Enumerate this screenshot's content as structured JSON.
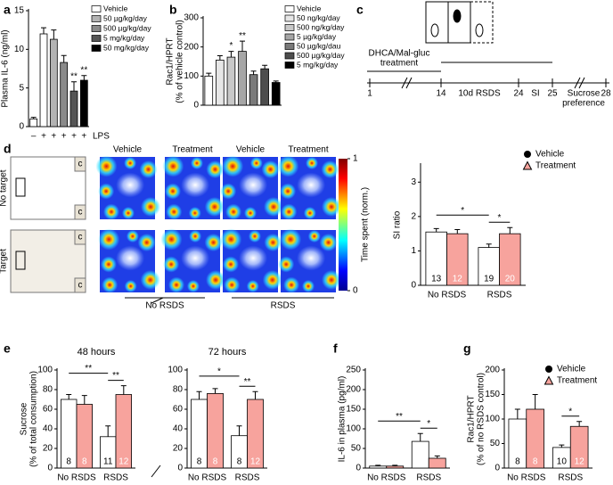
{
  "chart_data": [
    {
      "panel": "a",
      "type": "bar",
      "grouped": false,
      "ylabel": [
        "Plasma IL-6 (ng/ml)"
      ],
      "xlabel": "LPS",
      "categories": [
        "–",
        "+",
        "+",
        "+",
        "+",
        "+"
      ],
      "ylim": [
        0,
        15
      ],
      "yticks": [
        0,
        5,
        10,
        15
      ],
      "legend": "upper right",
      "legend_marker": "box",
      "series": [
        {
          "name": "Vehicle",
          "color": "#ffffff",
          "values": [
            1,
            12,
            null,
            null,
            null,
            null
          ],
          "errors": [
            0.2,
            0.8,
            null,
            null,
            null,
            null
          ]
        },
        {
          "name": "50 µg/kg/day",
          "color": "#b3b3b3",
          "values": [
            null,
            null,
            11.3,
            null,
            null,
            null
          ],
          "errors": [
            null,
            null,
            1.2,
            null,
            null,
            null
          ]
        },
        {
          "name": "500 µg/kg/day",
          "color": "#8a8a8a",
          "values": [
            null,
            null,
            null,
            8.3,
            null,
            null
          ],
          "errors": [
            null,
            null,
            null,
            0.9,
            null,
            null
          ]
        },
        {
          "name": "5 mg/kg/day",
          "color": "#555555",
          "values": [
            null,
            null,
            null,
            null,
            4.6,
            null
          ],
          "errors": [
            null,
            null,
            null,
            null,
            1.2,
            null
          ],
          "annotations": [
            null,
            null,
            null,
            null,
            "**",
            null
          ]
        },
        {
          "name": "50 mg/kg/day",
          "color": "#000000",
          "values": [
            null,
            null,
            null,
            null,
            null,
            6
          ],
          "errors": [
            null,
            null,
            null,
            null,
            null,
            0.6
          ],
          "annotations": [
            null,
            null,
            null,
            null,
            null,
            "**"
          ]
        }
      ]
    },
    {
      "panel": "b",
      "type": "bar",
      "grouped": false,
      "ylabel": [
        "Rac1/HPRT",
        "(% of vehicle control)"
      ],
      "categories": [
        null,
        null,
        null,
        null,
        null,
        null,
        null
      ],
      "ylim": [
        0,
        300
      ],
      "yticks": [
        0,
        100,
        200,
        300
      ],
      "legend": "upper right",
      "legend_marker": "box",
      "series": [
        {
          "name": "Vehicle",
          "color": "#ffffff",
          "values": [
            100,
            null,
            null,
            null,
            null,
            null,
            null
          ],
          "errors": [
            10,
            null,
            null,
            null,
            null,
            null,
            null
          ]
        },
        {
          "name": "50 ng/kg/day",
          "color": "#e6e6e6",
          "values": [
            null,
            155,
            null,
            null,
            null,
            null,
            null
          ],
          "errors": [
            null,
            15,
            null,
            null,
            null,
            null,
            null
          ]
        },
        {
          "name": "500 ng/kg/day",
          "color": "#c8c8c8",
          "values": [
            null,
            null,
            165,
            null,
            null,
            null,
            null
          ],
          "errors": [
            null,
            null,
            20,
            null,
            null,
            null,
            null
          ],
          "annotations": [
            null,
            null,
            "*",
            null,
            null,
            null,
            null
          ]
        },
        {
          "name": "5 µg/kg/day",
          "color": "#a6a6a6",
          "values": [
            null,
            null,
            null,
            185,
            null,
            null,
            null
          ],
          "errors": [
            null,
            null,
            null,
            35,
            null,
            null,
            null
          ],
          "annotations": [
            null,
            null,
            null,
            "**",
            null,
            null,
            null
          ]
        },
        {
          "name": "50 µg/kg/dau",
          "color": "#7a7a7a",
          "values": [
            null,
            null,
            null,
            null,
            105,
            null,
            null
          ],
          "errors": [
            null,
            null,
            null,
            null,
            12,
            null,
            null
          ]
        },
        {
          "name": "500 µg/kg/day",
          "color": "#4d4d4d",
          "values": [
            null,
            null,
            null,
            null,
            null,
            125,
            null
          ],
          "errors": [
            null,
            null,
            null,
            null,
            null,
            12,
            null
          ]
        },
        {
          "name": "5 mg/kg/day",
          "color": "#000000",
          "values": [
            null,
            null,
            null,
            null,
            null,
            null,
            78
          ],
          "errors": [
            null,
            null,
            null,
            null,
            null,
            null,
            5
          ]
        }
      ]
    },
    {
      "type": "bar",
      "grouped": true,
      "ylabel": [
        "SI ratio"
      ],
      "categories": [
        "No RSDS",
        "RSDS"
      ],
      "ylim": [
        0,
        3.5
      ],
      "yticks": [
        0,
        1,
        2,
        3
      ],
      "legend": "upper right",
      "legend_marker": "symbol",
      "series": [
        {
          "name": "Vehicle",
          "color": "#ffffff",
          "marker": "circle",
          "marker_color": "#000000",
          "values": [
            1.55,
            1.1
          ],
          "errors": [
            0.1,
            0.1
          ],
          "n_labels": [
            "13",
            "19"
          ],
          "annotations": [
            null,
            "*"
          ]
        },
        {
          "name": "Treatment",
          "color": "#f7a39d",
          "marker": "triangle",
          "marker_color": "#f7a39d",
          "values": [
            1.5,
            1.5
          ],
          "errors": [
            0.12,
            0.18
          ],
          "n_labels": [
            "12",
            "20"
          ],
          "annotations": [
            null,
            "*"
          ]
        }
      ]
    },
    {
      "panel": "e",
      "type": "bar",
      "grouped": true,
      "title": "48 hours",
      "ylabel": [
        "Sucrose",
        "(% of total consumption)"
      ],
      "categories": [
        "No RSDS",
        "RSDS"
      ],
      "ylim": [
        0,
        100
      ],
      "yticks": [
        0,
        20,
        40,
        60,
        80,
        100
      ],
      "series": [
        {
          "name": "Vehicle",
          "color": "#ffffff",
          "values": [
            70,
            32
          ],
          "errors": [
            5,
            11
          ],
          "n_labels": [
            "8",
            "11"
          ],
          "annotations": [
            null,
            "**"
          ]
        },
        {
          "name": "Treatment",
          "color": "#f7a39d",
          "values": [
            65,
            75
          ],
          "errors": [
            9,
            9
          ],
          "n_labels": [
            "8",
            "12"
          ],
          "annotations": [
            null,
            "**"
          ]
        }
      ]
    },
    {
      "type": "bar",
      "grouped": true,
      "title": "72 hours",
      "categories": [
        "No RSDS",
        "RSDS"
      ],
      "ylim": [
        0,
        100
      ],
      "yticks": [
        0,
        20,
        40,
        60,
        80,
        100
      ],
      "series": [
        {
          "name": "Vehicle",
          "color": "#ffffff",
          "values": [
            70,
            33
          ],
          "errors": [
            8,
            10
          ],
          "n_labels": [
            "8",
            "8"
          ],
          "annotations": [
            null,
            "*"
          ]
        },
        {
          "name": "Treatment",
          "color": "#f7a39d",
          "values": [
            76,
            70
          ],
          "errors": [
            5,
            8
          ],
          "n_labels": [
            "8",
            "12"
          ],
          "annotations": [
            null,
            "**"
          ]
        }
      ]
    },
    {
      "panel": "f",
      "type": "bar",
      "grouped": true,
      "ylabel": [
        "IL-6 in plasma (pg/ml)"
      ],
      "categories": [
        "No RSDS",
        "RSDS"
      ],
      "ylim": [
        0,
        250
      ],
      "yticks": [
        0,
        50,
        100,
        150,
        200,
        250
      ],
      "series": [
        {
          "name": "Vehicle",
          "color": "#ffffff",
          "values": [
            5,
            68
          ],
          "errors": [
            2,
            20
          ],
          "annotations": [
            null,
            "**"
          ]
        },
        {
          "name": "Treatment",
          "color": "#f7a39d",
          "values": [
            5,
            25
          ],
          "errors": [
            2,
            6
          ],
          "annotations": [
            null,
            "*"
          ]
        }
      ]
    },
    {
      "panel": "g",
      "type": "bar",
      "grouped": true,
      "ylabel": [
        "Rac1/HPRT",
        "(% of no RSDS control)"
      ],
      "categories": [
        "No RSDS",
        "RSDS"
      ],
      "ylim": [
        0,
        200
      ],
      "yticks": [
        0,
        50,
        100,
        150,
        200
      ],
      "legend": "upper right",
      "legend_marker": "symbol",
      "series": [
        {
          "name": "Vehicle",
          "color": "#ffffff",
          "marker": "circle",
          "marker_color": "#000000",
          "values": [
            100,
            42
          ],
          "errors": [
            20,
            5
          ],
          "n_labels": [
            "8",
            "10"
          ]
        },
        {
          "name": "Treatment",
          "color": "#f7a39d",
          "marker": "triangle",
          "marker_color": "#f7a39d",
          "values": [
            120,
            85
          ],
          "errors": [
            30,
            10
          ],
          "n_labels": [
            "8",
            "12"
          ],
          "annotations": [
            null,
            "*"
          ]
        }
      ]
    }
  ],
  "timeline": {
    "panel": "c",
    "treatment": [
      "DHCA/Mal-gluc",
      "treatment"
    ],
    "days": [
      1,
      14,
      24,
      25,
      28
    ],
    "phases": [
      [
        "10d RSDS"
      ],
      [
        "SI"
      ],
      [
        "Sucrose",
        "preference"
      ]
    ]
  },
  "heatmaps": {
    "panel": "d",
    "columns": [
      "Vehicle",
      "Treatment",
      "Vehicle",
      "Treatment"
    ],
    "rows": [
      "No target",
      "Target"
    ],
    "cage_label": "c",
    "groups": [
      "No RSDS",
      "RSDS"
    ],
    "colorbar": {
      "label": "Time spent (norm.)",
      "ticks": [
        0,
        1
      ]
    }
  }
}
